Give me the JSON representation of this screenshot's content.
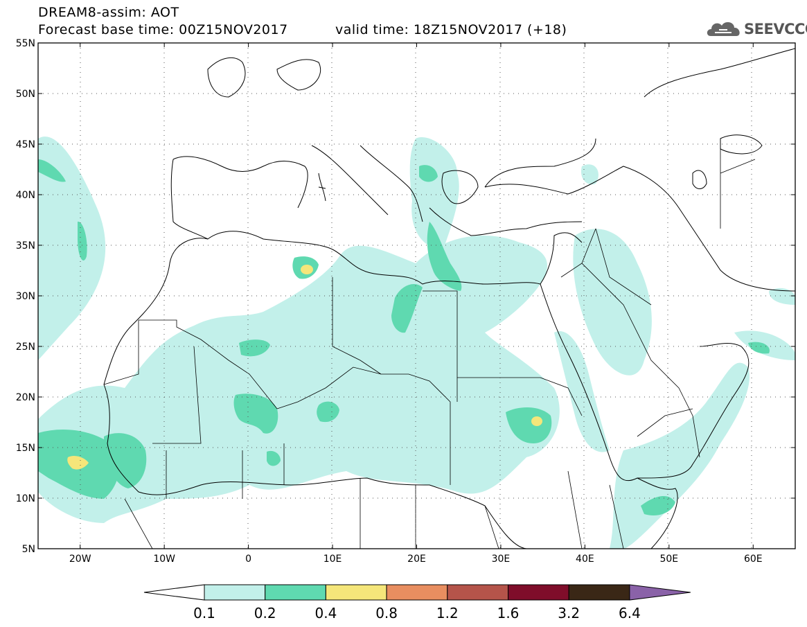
{
  "header": {
    "title_line1": "DREAM8-assim: AOT",
    "title_line2": "Forecast base time: 00Z15NOV2017",
    "valid_time": "valid time: 18Z15NOV2017 (+18)"
  },
  "logo": {
    "text": "SEEVCCC",
    "icon": "cloud-logo-icon"
  },
  "map": {
    "lat_labels": [
      {
        "lat": 55,
        "text": "55N"
      },
      {
        "lat": 50,
        "text": "50N"
      },
      {
        "lat": 45,
        "text": "45N"
      },
      {
        "lat": 40,
        "text": "40N"
      },
      {
        "lat": 35,
        "text": "35N"
      },
      {
        "lat": 30,
        "text": "30N"
      },
      {
        "lat": 25,
        "text": "25N"
      },
      {
        "lat": 20,
        "text": "20N"
      },
      {
        "lat": 15,
        "text": "15N"
      },
      {
        "lat": 10,
        "text": "10N"
      },
      {
        "lat": 5,
        "text": "5N"
      }
    ],
    "lon_labels": [
      {
        "lon": -20,
        "text": "20W"
      },
      {
        "lon": -10,
        "text": "10W"
      },
      {
        "lon": 0,
        "text": "0"
      },
      {
        "lon": 10,
        "text": "10E"
      },
      {
        "lon": 20,
        "text": "20E"
      },
      {
        "lon": 30,
        "text": "30E"
      },
      {
        "lon": 40,
        "text": "40E"
      },
      {
        "lon": 50,
        "text": "50E"
      },
      {
        "lon": 60,
        "text": "60E"
      }
    ]
  },
  "colorbar": {
    "labels": [
      "0.1",
      "0.2",
      "0.4",
      "0.8",
      "1.2",
      "1.6",
      "3.2",
      "6.4"
    ],
    "colors": [
      "#ffffff",
      "#c2f0ea",
      "#5fd9b0",
      "#f5e67a",
      "#e88e60",
      "#b5544a",
      "#7f0d2a",
      "#3a2716",
      "#8a62a8"
    ]
  },
  "palette": {
    "aot_0_1": "#c2f0ea",
    "aot_0_2": "#5fd9b0",
    "aot_0_4": "#f5e67a"
  }
}
